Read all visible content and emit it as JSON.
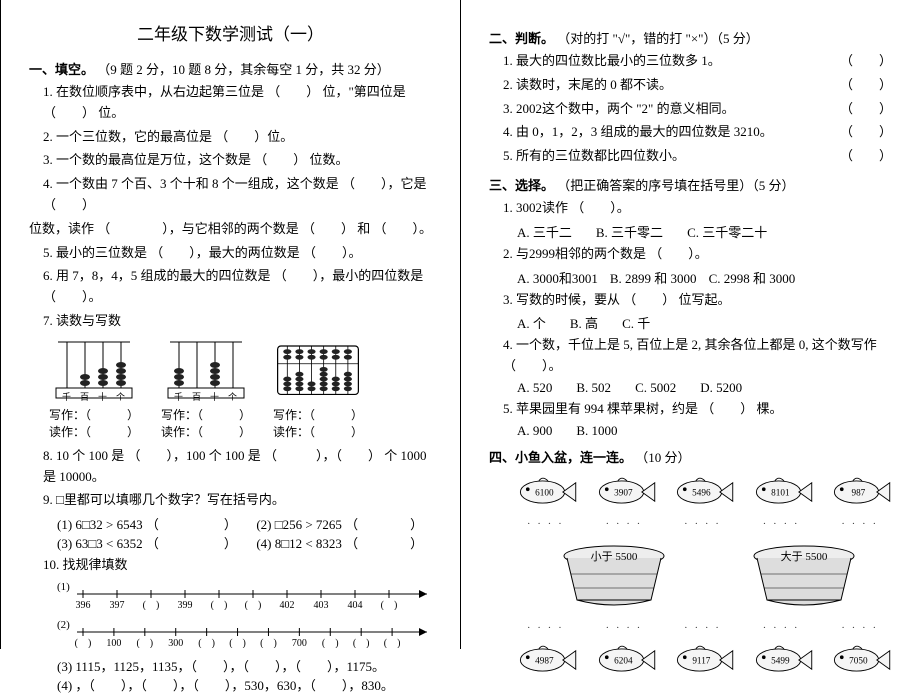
{
  "title": "二年级下数学测试（一）",
  "s1": {
    "head": "一、填空。",
    "note": "（9 题 2 分，10 题 8 分，其余每空 1 分，共 32 分）",
    "q1": "1. 在数位顺序表中，从右边起第三位是 （　　） 位，\"第四位是 （　　） 位。",
    "q2": "2. 一个三位数，它的最高位是 （　　）位。",
    "q3": "3. 一个数的最高位是万位，这个数是 （　　） 位数。",
    "q4": "4. 一个数由 7 个百、3 个十和 8 个一组成，这个数是 （　　），它是 （　　）",
    "q4b": "位数，读作 （　　　　），与它相邻的两个数是 （　　） 和 （　　）。",
    "q5": "5. 最小的三位数是 （　　），最大的两位数是 （　　）。",
    "q6": "6. 用 7，8，4，5 组成的最大的四位数是 （　　），最小的四位数是 （　　）。",
    "q7": "7. 读数与写数",
    "write": "写作：（　　　）",
    "read": "读作：（　　　）",
    "abacus_labels": "千百十个",
    "q8": "8. 10 个 100 是 （　　），100 个 100 是 （　　　），（　　） 个 1000 是 10000。",
    "q9": "9. □里都可以填哪几个数字？写在括号内。",
    "q9_1": "(1) 6□32 > 6543 （　　　　　）　　(2) □256 > 7265 （　　　　）",
    "q9_3": "(3) 63□3 < 6352 （　　　　　）　　(4) 8□12 < 8323 （　　　　）",
    "q10": "10. 找规律填数",
    "nl1": {
      "nums": [
        "396",
        "397",
        "(　)",
        "399",
        "(　)",
        "(　)",
        "402",
        "403",
        "404",
        "(　)"
      ]
    },
    "nl2": {
      "nums": [
        "(　)",
        "100",
        "(　)",
        "300",
        "(　)",
        "(　)",
        "(　)",
        "700",
        "(　)",
        "(　)",
        "(　)"
      ]
    },
    "q10_3": "(3) 1115，1125，1135，（　　），（　　），（　　），1175。",
    "q10_4": "(4) ，（　　），（　　），（　　），530，630，（　　），830。"
  },
  "s2": {
    "head": "二、判断。",
    "note": "（对的打 \"√\"，错的打 \"×\"）（5 分）",
    "q1": "1. 最大的四位数比最小的三位数多 1。",
    "q2": "2. 读数时，末尾的 0 都不读。",
    "q3": "3. 2002这个数中，两个 \"2\" 的意义相同。",
    "q4": "4. 由 0，1，2，3 组成的最大的四位数是 3210。",
    "q5": "5. 所有的三位数都比四位数小。"
  },
  "s3": {
    "head": "三、选择。",
    "note": "（把正确答案的序号填在括号里）（5 分）",
    "q1": "1. 3002读作 （　　）。",
    "q1a": "A. 三千二",
    "q1b": "B. 三千零二",
    "q1c": "C. 三千零二十",
    "q2": "2. 与2999相邻的两个数是 （　　）。",
    "q2a": "A. 3000和3001",
    "q2b": "B. 2899 和 3000",
    "q2c": "C. 2998 和 3000",
    "q3": "3. 写数的时候，要从 （　　） 位写起。",
    "q3a": "A. 个",
    "q3b": "B. 高",
    "q3c": "C. 千",
    "q4": "4. 一个数，千位上是 5, 百位上是 2, 其余各位上都是 0, 这个数写作 （　　）。",
    "q4a": "A. 520",
    "q4b": "B. 502",
    "q4c": "C. 5002",
    "q4d": "D. 5200",
    "q5": "5. 苹果园里有 994 棵苹果树，约是 （　　） 棵。",
    "q5a": "A. 900",
    "q5b": "B. 1000"
  },
  "s4": {
    "head": "四、小鱼入盆，连一连。",
    "note": "（10 分）",
    "fish_top": [
      "6100",
      "3907",
      "5496",
      "8101",
      "987"
    ],
    "bucket_left": "小于 5500",
    "bucket_right": "大于 5500",
    "fish_bot": [
      "4987",
      "6204",
      "9117",
      "5499",
      "7050"
    ]
  },
  "colors": {
    "ink": "#000000",
    "bg": "#ffffff",
    "bead": "#222222",
    "line": "#000000"
  }
}
